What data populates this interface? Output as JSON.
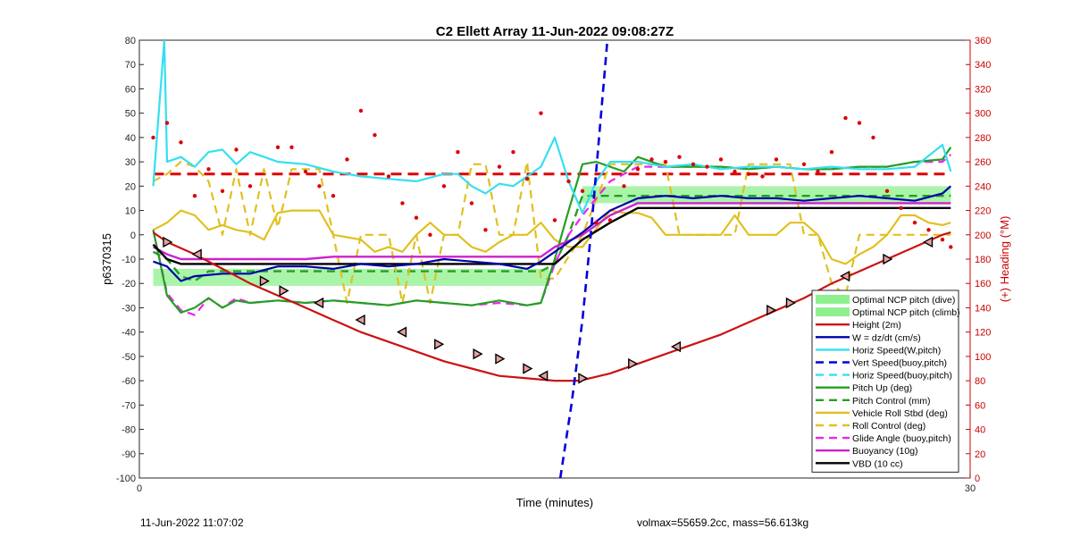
{
  "chart_data": {
    "type": "line",
    "title": "C2 Ellett Array 11-Jun-2022 09:08:27Z",
    "xlabel": "Time (minutes)",
    "ylabel": "p6370315",
    "y2label": "(+) Heading (°M)",
    "xlim": [
      0,
      30
    ],
    "ylim": [
      -100,
      80
    ],
    "y2lim": [
      0,
      360
    ],
    "xticks": [
      0,
      30
    ],
    "yticks": [
      80,
      70,
      60,
      50,
      40,
      30,
      20,
      10,
      0,
      -10,
      -20,
      -30,
      -40,
      -50,
      -60,
      -70,
      -80,
      -90,
      -100
    ],
    "y2ticks": [
      360,
      340,
      320,
      300,
      280,
      260,
      240,
      220,
      200,
      180,
      160,
      140,
      120,
      100,
      80,
      60,
      40,
      20,
      0
    ],
    "grid": false,
    "legend_position": "bottom-right",
    "colors": {
      "height": "#cc1111",
      "w": "#0000aa",
      "horiz_w": "#33e0f0",
      "vert_buoy": "#0000dd",
      "pitch": "#22a022",
      "roll": "#e0c020",
      "glide": "#ee22ee",
      "buoyancy": "#cc22cc",
      "vbd": "#000000",
      "band": "#8ef08e",
      "heading": "#dd0000",
      "right_axis": "#cc0000"
    },
    "bands": [
      {
        "name": "Optimal NCP pitch (dive)",
        "x": [
          0.5,
          14.8
        ],
        "y": [
          -21,
          -14
        ]
      },
      {
        "name": "Optimal NCP pitch (climb)",
        "x": [
          16.0,
          29.3
        ],
        "y": [
          13,
          20
        ]
      }
    ],
    "series": [
      {
        "key": "height",
        "name": "Height (2m)",
        "style": "solid",
        "x": [
          0.5,
          1.0,
          2.0,
          3.0,
          4.0,
          5.0,
          6.0,
          7.0,
          8.0,
          9.0,
          10.0,
          11.0,
          12.0,
          13.0,
          14.0,
          15.0,
          15.9,
          17.0,
          18.0,
          19.0,
          20.0,
          21.0,
          22.0,
          23.0,
          24.0,
          25.0,
          26.0,
          27.0,
          28.0,
          29.0,
          29.3
        ],
        "values": [
          1,
          -3,
          -8,
          -14,
          -20,
          -25,
          -30,
          -35,
          -40,
          -44,
          -48,
          -52,
          -55,
          -58,
          -59,
          -60,
          -60,
          -57,
          -53,
          -49,
          -45,
          -41,
          -36,
          -31,
          -26,
          -20,
          -15,
          -10,
          -5,
          0,
          1
        ]
      },
      {
        "key": "w",
        "name": "W = dz/dt (cm/s)",
        "style": "solid",
        "x": [
          0.5,
          1.0,
          1.5,
          2.0,
          3.0,
          4.0,
          5.0,
          6.0,
          7.0,
          8.0,
          9.0,
          10.0,
          11.0,
          12.0,
          13.0,
          14.0,
          14.5,
          15.0,
          15.5,
          16.0,
          17.0,
          18.0,
          19.0,
          20.0,
          21.0,
          22.0,
          23.0,
          24.0,
          25.0,
          26.0,
          27.0,
          28.0,
          29.0,
          29.3
        ],
        "values": [
          -11,
          -13,
          -19,
          -17,
          -16,
          -16,
          -13,
          -13,
          -14,
          -12,
          -13,
          -12,
          -10,
          -11,
          -12,
          -14,
          -11,
          -7,
          -3,
          1,
          10,
          15,
          16,
          15,
          16,
          15,
          15,
          14,
          15,
          16,
          15,
          14,
          17,
          20
        ]
      },
      {
        "key": "horiz_w",
        "name": "Horiz Speed(W,pitch)",
        "style": "solid",
        "x": [
          0.5,
          0.9,
          1.0,
          1.5,
          2.0,
          2.5,
          3.0,
          3.5,
          4.0,
          5.0,
          6.0,
          7.0,
          8.0,
          9.0,
          10.0,
          11.0,
          11.5,
          12.0,
          12.5,
          13.0,
          13.5,
          14.0,
          14.5,
          15.0,
          15.5,
          16.0,
          16.5,
          17.0,
          18.0,
          19.0,
          20.0,
          21.0,
          22.0,
          23.0,
          24.0,
          25.0,
          26.0,
          27.0,
          28.0,
          29.0,
          29.3
        ],
        "values": [
          20,
          80,
          30,
          32,
          28,
          34,
          35,
          29,
          34,
          30,
          29,
          26,
          24,
          23,
          22,
          25,
          25,
          20,
          17,
          21,
          20,
          24,
          28,
          40,
          22,
          9,
          22,
          30,
          30,
          28,
          29,
          27,
          28,
          28,
          27,
          28,
          27,
          27,
          28,
          37,
          26
        ]
      },
      {
        "key": "vert_buoy",
        "name": "Vert Speed(buoy,pitch)",
        "style": "dashed",
        "x": [
          15.2,
          15.6,
          16.0,
          16.3,
          16.6,
          16.9
        ],
        "values": [
          -100,
          -70,
          -35,
          0,
          40,
          80
        ]
      },
      {
        "key": "horiz_buoy",
        "name": "Horiz Speed(buoy,pitch)",
        "style": "dashed",
        "x": [],
        "values": []
      },
      {
        "key": "pitch",
        "name": "Pitch Up (deg)",
        "style": "solid",
        "x": [
          0.5,
          1.0,
          1.5,
          2.0,
          2.5,
          3.0,
          3.5,
          4.0,
          5.0,
          6.0,
          7.0,
          8.0,
          9.0,
          10.0,
          11.0,
          12.0,
          13.0,
          14.0,
          14.5,
          15.0,
          15.5,
          16.0,
          16.5,
          17.0,
          17.5,
          18.0,
          19.0,
          20.0,
          21.0,
          22.0,
          23.0,
          24.0,
          25.0,
          26.0,
          27.0,
          28.0,
          29.0,
          29.3
        ],
        "values": [
          2,
          -25,
          -32,
          -30,
          -26,
          -30,
          -27,
          -28,
          -27,
          -28,
          -27,
          -28,
          -29,
          -27,
          -28,
          -29,
          -27,
          -29,
          -28,
          -10,
          10,
          29,
          30,
          28,
          26,
          32,
          28,
          28,
          28,
          27,
          28,
          27,
          27,
          28,
          28,
          30,
          31,
          36
        ]
      },
      {
        "key": "pitch_ctrl",
        "name": "Pitch Control (mm)",
        "style": "dashed",
        "x": [
          0.5,
          1.0,
          1.5,
          2.0,
          2.5,
          14.5,
          15.0,
          15.5,
          16.0,
          29.3
        ],
        "values": [
          -7,
          -10,
          -17,
          -19,
          -15,
          -15,
          -12,
          0,
          16,
          16
        ]
      },
      {
        "key": "roll",
        "name": "Vehicle Roll Stbd (deg)",
        "style": "solid",
        "x": [
          0.5,
          1.0,
          1.5,
          2.0,
          2.5,
          3.0,
          3.5,
          4.0,
          4.5,
          5.0,
          5.5,
          6.0,
          6.5,
          7.0,
          7.5,
          8.0,
          8.5,
          9.0,
          9.5,
          10.0,
          10.5,
          11.0,
          11.5,
          12.0,
          12.5,
          13.0,
          13.5,
          14.0,
          14.5,
          15.0,
          15.5,
          16.0,
          17.0,
          17.5,
          18.0,
          18.5,
          19.0,
          19.5,
          20.0,
          20.5,
          21.0,
          21.5,
          22.0,
          22.5,
          23.0,
          23.5,
          24.0,
          24.5,
          25.0,
          25.5,
          26.0,
          26.5,
          27.0,
          27.5,
          28.0,
          28.5,
          29.0,
          29.3
        ],
        "values": [
          2,
          5,
          10,
          8,
          2,
          4,
          2,
          1,
          -2,
          9,
          10,
          10,
          10,
          0,
          -1,
          -2,
          -7,
          -5,
          -7,
          0,
          5,
          0,
          0,
          -5,
          -7,
          -3,
          0,
          0,
          5,
          -2,
          -5,
          -5,
          10,
          9,
          9,
          7,
          0,
          0,
          0,
          0,
          0,
          8,
          0,
          0,
          0,
          5,
          5,
          0,
          -10,
          -12,
          -8,
          -5,
          0,
          8,
          8,
          5,
          4,
          5
        ]
      },
      {
        "key": "roll_ctrl",
        "name": "Roll Control (deg)",
        "style": "dashed",
        "x": [
          0.5,
          1.0,
          1.5,
          2.0,
          2.5,
          3.0,
          3.5,
          4.0,
          4.5,
          5.0,
          5.5,
          6.0,
          6.5,
          7.0,
          7.5,
          8.0,
          8.5,
          9.0,
          9.5,
          10.0,
          10.5,
          11.0,
          11.5,
          12.0,
          12.5,
          13.0,
          13.5,
          14.0,
          14.5,
          15.0,
          16.0,
          17.0,
          18.0,
          19.0,
          19.5,
          20.0,
          20.5,
          21.0,
          21.5,
          22.0,
          23.0,
          23.5,
          24.0,
          24.5,
          25.0,
          25.5,
          26.0,
          26.5,
          27.0,
          27.5,
          28.0,
          29.0,
          29.3
        ],
        "values": [
          22,
          25,
          30,
          28,
          22,
          0,
          27,
          0,
          27,
          3,
          27,
          27,
          27,
          0,
          -28,
          0,
          0,
          0,
          -28,
          0,
          -28,
          0,
          0,
          29,
          29,
          0,
          0,
          30,
          -18,
          -18,
          0,
          29,
          29,
          29,
          0,
          0,
          0,
          0,
          0,
          29,
          29,
          29,
          0,
          0,
          -20,
          -25,
          0,
          0,
          0,
          0,
          0,
          0,
          0
        ]
      },
      {
        "key": "glide",
        "name": "Glide Angle (buoy,pitch)",
        "style": "dashed",
        "x": [
          0.5,
          1.0,
          1.5,
          2.0,
          2.5,
          3.0,
          3.5,
          4.0,
          5.0,
          6.0,
          7.0,
          8.0,
          9.0,
          10.0,
          11.0,
          12.0,
          13.0,
          14.0,
          14.5,
          15.0,
          15.5,
          16.0,
          16.5,
          17.0,
          18.0,
          19.0,
          20.0,
          21.0,
          22.0,
          23.0,
          24.0,
          25.0,
          26.0,
          27.0,
          28.0,
          29.0,
          29.3
        ],
        "values": [
          2,
          -24,
          -31,
          -33,
          -26,
          -30,
          -26,
          -28,
          -27,
          -28,
          -27,
          -28,
          -29,
          -27,
          -28,
          -29,
          -28,
          -29,
          -28,
          -12,
          0,
          8,
          15,
          22,
          28,
          28,
          28,
          28,
          27,
          28,
          27,
          27,
          28,
          28,
          30,
          30,
          33
        ]
      },
      {
        "key": "buoyancy",
        "name": "Buoyancy (10g)",
        "style": "solid",
        "x": [
          0.5,
          1.0,
          1.5,
          2.0,
          6.0,
          7.0,
          8.0,
          14.0,
          14.5,
          15.0,
          16.0,
          17.0,
          18.0,
          19.0,
          29.3
        ],
        "values": [
          -5,
          -8,
          -10,
          -10,
          -10,
          -9,
          -9,
          -9,
          -9,
          -5,
          0,
          8,
          13,
          13,
          13
        ]
      },
      {
        "key": "vbd",
        "name": "VBD (10 cc)",
        "style": "solid",
        "x": [
          0.5,
          1.0,
          1.5,
          2.0,
          14.5,
          15.0,
          15.5,
          16.0,
          17.0,
          18.0,
          29.3
        ],
        "values": [
          -4,
          -10,
          -12,
          -12,
          -12,
          -12,
          -7,
          -2,
          5,
          11,
          11
        ]
      }
    ],
    "heading_axis": "right",
    "heading_x": [
      0.5,
      1.0,
      1.5,
      2.0,
      2.5,
      3.0,
      3.5,
      4.0,
      5.0,
      5.5,
      6.0,
      6.5,
      7.0,
      7.5,
      8.0,
      8.5,
      9.0,
      9.5,
      10.0,
      10.5,
      11.0,
      11.5,
      12.0,
      12.5,
      13.0,
      13.5,
      14.0,
      14.5,
      15.0,
      15.5,
      16.0,
      16.5,
      17.0,
      17.5,
      18.0,
      18.5,
      19.0,
      19.5,
      20.0,
      20.5,
      21.0,
      21.5,
      22.0,
      22.5,
      23.0,
      24.0,
      24.5,
      25.0,
      25.5,
      26.0,
      26.5,
      27.0,
      27.5,
      28.0,
      28.5,
      29.0,
      29.3
    ],
    "heading_y": [
      280,
      292,
      276,
      232,
      254,
      236,
      270,
      240,
      272,
      272,
      252,
      240,
      232,
      262,
      302,
      282,
      248,
      226,
      214,
      200,
      240,
      268,
      226,
      204,
      256,
      268,
      246,
      300,
      212,
      244,
      236,
      210,
      212,
      240,
      254,
      262,
      260,
      264,
      258,
      256,
      262,
      252,
      250,
      248,
      262,
      258,
      252,
      268,
      296,
      292,
      280,
      236,
      222,
      210,
      204,
      196,
      190
    ],
    "reference_lines": {
      "heading_target_deg": 250
    },
    "legend": [
      "Optimal NCP pitch (dive)",
      "Optimal NCP pitch (climb)",
      "Height (2m)",
      "W = dz/dt (cm/s)",
      "Horiz Speed(W,pitch)",
      "Vert Speed(buoy,pitch)",
      "Horiz Speed(buoy,pitch)",
      "Pitch Up (deg)",
      "Pitch Control (mm)",
      "Vehicle Roll Stbd (deg)",
      "Roll Control (deg)",
      "Glide Angle (buoy,pitch)",
      "Buoyancy (10g)",
      "VBD (10 cc)"
    ]
  },
  "footer": {
    "left": "11-Jun-2022 11:07:02",
    "right": "volmax=55659.2cc, mass=56.613kg"
  }
}
